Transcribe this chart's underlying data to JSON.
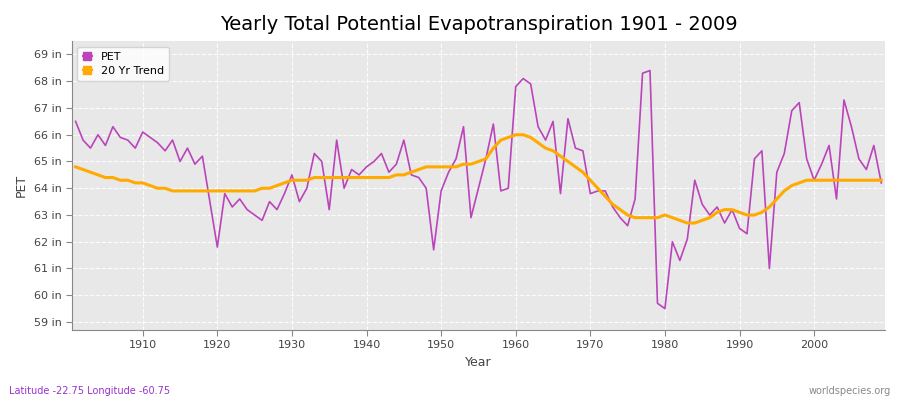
{
  "title": "Yearly Total Potential Evapotranspiration 1901 - 2009",
  "xlabel": "Year",
  "ylabel": "PET",
  "x_start": 1901,
  "x_end": 2009,
  "y_ticks": [
    59,
    60,
    61,
    62,
    63,
    64,
    65,
    66,
    67,
    68,
    69
  ],
  "y_tick_labels": [
    "59 in",
    "60 in",
    "61 in",
    "62 in",
    "63 in",
    "64 in",
    "65 in",
    "66 in",
    "67 in",
    "68 in",
    "69 in"
  ],
  "ylim": [
    58.7,
    69.5
  ],
  "xlim": [
    1900.5,
    2009.5
  ],
  "pet_color": "#bb44bb",
  "trend_color": "#ffaa00",
  "bg_color": "#ffffff",
  "plot_bg_color": "#e8e8e8",
  "grid_color": "#ffffff",
  "legend_pet": "PET",
  "legend_trend": "20 Yr Trend",
  "bottom_left": "Latitude -22.75 Longitude -60.75",
  "bottom_right": "worldspecies.org",
  "title_fontsize": 14,
  "x_ticks": [
    1910,
    1920,
    1930,
    1940,
    1950,
    1960,
    1970,
    1980,
    1990,
    2000
  ],
  "pet_values": [
    66.5,
    65.8,
    65.5,
    66.0,
    65.6,
    66.3,
    65.9,
    65.8,
    65.5,
    66.1,
    65.9,
    65.7,
    65.4,
    65.8,
    65.0,
    65.5,
    64.9,
    65.2,
    63.5,
    61.8,
    63.8,
    63.3,
    63.6,
    63.2,
    63.0,
    62.8,
    63.5,
    63.2,
    63.8,
    64.5,
    63.5,
    64.0,
    65.3,
    65.0,
    63.2,
    65.8,
    64.0,
    64.7,
    64.5,
    64.8,
    65.0,
    65.3,
    64.6,
    64.9,
    65.8,
    64.5,
    64.4,
    64.0,
    61.7,
    63.9,
    64.6,
    65.1,
    66.3,
    62.9,
    64.0,
    65.1,
    66.4,
    63.9,
    64.0,
    67.8,
    68.1,
    67.9,
    66.3,
    65.8,
    66.5,
    63.8,
    66.6,
    65.5,
    65.4,
    63.8,
    63.9,
    63.9,
    63.3,
    62.9,
    62.6,
    63.6,
    68.3,
    68.4,
    59.7,
    59.5,
    62.0,
    61.3,
    62.1,
    64.3,
    63.4,
    63.0,
    63.3,
    62.7,
    63.2,
    62.5,
    62.3,
    65.1,
    65.4,
    61.0,
    64.6,
    65.3,
    66.9,
    67.2,
    65.1,
    64.3,
    64.9,
    65.6,
    63.6,
    67.3,
    66.3,
    65.1,
    64.7,
    65.6,
    64.2
  ],
  "trend_values": [
    64.8,
    64.7,
    64.6,
    64.5,
    64.4,
    64.4,
    64.3,
    64.3,
    64.2,
    64.2,
    64.1,
    64.0,
    64.0,
    63.9,
    63.9,
    63.9,
    63.9,
    63.9,
    63.9,
    63.9,
    63.9,
    63.9,
    63.9,
    63.9,
    63.9,
    64.0,
    64.0,
    64.1,
    64.2,
    64.3,
    64.3,
    64.3,
    64.4,
    64.4,
    64.4,
    64.4,
    64.4,
    64.4,
    64.4,
    64.4,
    64.4,
    64.4,
    64.4,
    64.5,
    64.5,
    64.6,
    64.7,
    64.8,
    64.8,
    64.8,
    64.8,
    64.8,
    64.9,
    64.9,
    65.0,
    65.1,
    65.5,
    65.8,
    65.9,
    66.0,
    66.0,
    65.9,
    65.7,
    65.5,
    65.4,
    65.2,
    65.0,
    64.8,
    64.6,
    64.3,
    64.0,
    63.7,
    63.4,
    63.2,
    63.0,
    62.9,
    62.9,
    62.9,
    62.9,
    63.0,
    62.9,
    62.8,
    62.7,
    62.7,
    62.8,
    62.9,
    63.1,
    63.2,
    63.2,
    63.1,
    63.0,
    63.0,
    63.1,
    63.3,
    63.6,
    63.9,
    64.1,
    64.2,
    64.3,
    64.3,
    64.3,
    64.3,
    64.3,
    64.3,
    64.3,
    64.3,
    64.3,
    64.3,
    64.3
  ]
}
